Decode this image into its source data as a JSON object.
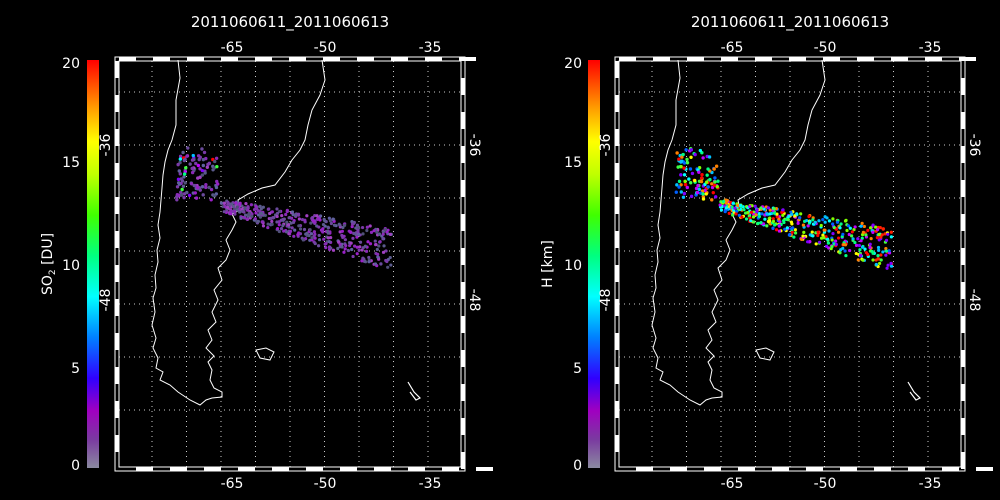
{
  "panels": [
    {
      "title": "2011060611_2011060613",
      "colorbar_label_main": "SO",
      "colorbar_label_sub": "2",
      "colorbar_label_unit": " [DU]",
      "variable": "so2"
    },
    {
      "title": "2011060611_2011060613",
      "colorbar_label_main": "H [km]",
      "colorbar_label_sub": "",
      "colorbar_label_unit": "",
      "variable": "height"
    }
  ],
  "colorbar_ticks": [
    "0",
    "5",
    "10",
    "15",
    "20"
  ],
  "colorbar_range": [
    0,
    20
  ],
  "lon_ticks": [
    "-65",
    "-50",
    "-35"
  ],
  "lat_ticks": [
    "-36",
    "-48"
  ],
  "colors": {
    "background": "#000000",
    "coast": "#ffffff",
    "grid": "#ffffff",
    "so2_low": "#5a5a8c",
    "so2_high": "#c040ff"
  },
  "chart_data": [
    {
      "type": "scatter",
      "title": "2011060611_2011060613",
      "ylabel": "SO2 [DU]",
      "x_axis": "longitude",
      "y_axis": "latitude",
      "colorbar_range": [
        0,
        20
      ],
      "xticks": [
        -65,
        -50,
        -35
      ],
      "yticks": [
        -36,
        -48
      ],
      "grid": true,
      "plume_region": {
        "lon": [
          -71,
          -39
        ],
        "lat": [
          -45,
          -33
        ]
      }
    },
    {
      "type": "scatter",
      "title": "2011060611_2011060613",
      "ylabel": "H [km]",
      "x_axis": "longitude",
      "y_axis": "latitude",
      "colorbar_range": [
        0,
        20
      ],
      "xticks": [
        -65,
        -50,
        -35
      ],
      "yticks": [
        -36,
        -48
      ],
      "grid": true,
      "plume_region": {
        "lon": [
          -71,
          -39
        ],
        "lat": [
          -45,
          -33
        ]
      }
    }
  ]
}
